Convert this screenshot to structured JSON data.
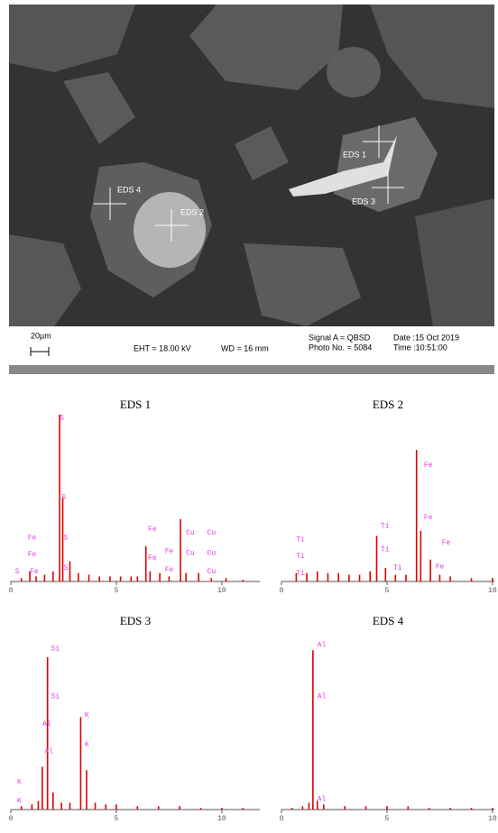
{
  "image": {
    "markers": [
      "EDS 1",
      "EDS 2",
      "EDS 3",
      "EDS 4"
    ],
    "scale_bar": "20µm",
    "eht": "EHT = 18.00 kV",
    "wd": "WD = 16 mm",
    "signal": "Signal A = QBSD",
    "photo": "Photo No. = 5084",
    "date": "Date :15 Oct 2019",
    "time": "Time :10:51:00"
  },
  "chart_data": [
    {
      "type": "bar",
      "title": "EDS 1",
      "color": "#e00000",
      "xlim": [
        0,
        11.8
      ],
      "xticks": [
        0,
        5,
        10
      ],
      "ylim": [
        0,
        100
      ],
      "x": [
        0.5,
        0.9,
        1.2,
        1.6,
        2.0,
        2.31,
        2.46,
        2.8,
        3.2,
        3.7,
        4.2,
        4.7,
        5.2,
        5.7,
        6.0,
        6.4,
        6.6,
        7.06,
        7.5,
        8.04,
        8.3,
        8.9,
        9.5,
        10.2,
        11.0
      ],
      "values": [
        2,
        6,
        3,
        4,
        6,
        99,
        50,
        12,
        5,
        4,
        3,
        3,
        3,
        3,
        3,
        21,
        6,
        5,
        3,
        37,
        5,
        5,
        2,
        2,
        1
      ],
      "annotation_color": "#e040e0",
      "annotations": [
        {
          "text": "S",
          "x": 2.31,
          "y": 97
        },
        {
          "text": "S",
          "x": 2.4,
          "y": 50
        },
        {
          "text": "S",
          "x": 2.5,
          "y": 26
        },
        {
          "text": "S",
          "x": 2.5,
          "y": 8
        },
        {
          "text": "Fe",
          "x": 0.8,
          "y": 26
        },
        {
          "text": "Fe",
          "x": 0.8,
          "y": 16
        },
        {
          "text": "S",
          "x": 0.2,
          "y": 6
        },
        {
          "text": "Fe",
          "x": 0.9,
          "y": 6
        },
        {
          "text": "Fe",
          "x": 6.5,
          "y": 31
        },
        {
          "text": "Fe",
          "x": 6.5,
          "y": 14
        },
        {
          "text": "Fe",
          "x": 7.3,
          "y": 18
        },
        {
          "text": "Fe",
          "x": 7.3,
          "y": 7
        },
        {
          "text": "Cu",
          "x": 8.3,
          "y": 29
        },
        {
          "text": "Cu",
          "x": 8.3,
          "y": 17
        },
        {
          "text": "Cu",
          "x": 9.3,
          "y": 29
        },
        {
          "text": "Cu",
          "x": 9.3,
          "y": 17
        },
        {
          "text": "Cu",
          "x": 9.3,
          "y": 6
        }
      ]
    },
    {
      "type": "bar",
      "title": "EDS 2",
      "color": "#e00000",
      "xlim": [
        0,
        11.8
      ],
      "xticks": [
        0,
        5,
        10
      ],
      "ylim": [
        0,
        100
      ],
      "x": [
        0.7,
        1.2,
        1.7,
        2.2,
        2.7,
        3.2,
        3.7,
        4.2,
        4.51,
        4.93,
        5.4,
        5.9,
        6.4,
        6.6,
        7.06,
        7.5,
        8.0,
        9.0,
        10.0,
        11.0
      ],
      "values": [
        5,
        5,
        6,
        5,
        5,
        4,
        4,
        6,
        27,
        8,
        4,
        4,
        78,
        30,
        13,
        4,
        3,
        2,
        2,
        1
      ],
      "annotation_color": "#e040e0",
      "annotations": [
        {
          "text": "Fe",
          "x": 6.75,
          "y": 69
        },
        {
          "text": "Fe",
          "x": 6.75,
          "y": 38
        },
        {
          "text": "Fe",
          "x": 7.6,
          "y": 23
        },
        {
          "text": "Fe",
          "x": 7.3,
          "y": 9
        },
        {
          "text": "Ti",
          "x": 4.7,
          "y": 33
        },
        {
          "text": "Ti",
          "x": 4.7,
          "y": 19
        },
        {
          "text": "Ti",
          "x": 5.3,
          "y": 8
        },
        {
          "text": "Ti",
          "x": 0.7,
          "y": 25
        },
        {
          "text": "Ti",
          "x": 0.7,
          "y": 15
        },
        {
          "text": "Ti",
          "x": 0.7,
          "y": 5
        }
      ]
    },
    {
      "type": "bar",
      "title": "EDS 3",
      "color": "#e00000",
      "xlim": [
        0,
        11.8
      ],
      "xticks": [
        0,
        5,
        10
      ],
      "ylim": [
        0,
        100
      ],
      "x": [
        0.5,
        1.0,
        1.3,
        1.49,
        1.74,
        2.0,
        2.4,
        2.8,
        3.31,
        3.59,
        4.0,
        4.5,
        5.0,
        6.0,
        7.0,
        8.0,
        9.0,
        10.0,
        11.0
      ],
      "values": [
        2,
        3,
        5,
        25,
        89,
        10,
        4,
        4,
        54,
        23,
        4,
        3,
        3,
        2,
        2,
        2,
        1,
        1,
        1
      ],
      "annotation_color": "#e040e0",
      "annotations": [
        {
          "text": "Si",
          "x": 1.9,
          "y": 94
        },
        {
          "text": "Si",
          "x": 1.9,
          "y": 66
        },
        {
          "text": "Al",
          "x": 1.5,
          "y": 50
        },
        {
          "text": "Al",
          "x": 1.6,
          "y": 34
        },
        {
          "text": "K",
          "x": 3.5,
          "y": 55
        },
        {
          "text": "K",
          "x": 3.5,
          "y": 38
        },
        {
          "text": "K",
          "x": 0.3,
          "y": 16
        },
        {
          "text": "K",
          "x": 0.3,
          "y": 5
        }
      ]
    },
    {
      "type": "bar",
      "title": "EDS 4",
      "color": "#e00000",
      "xlim": [
        0,
        11.8
      ],
      "xticks": [
        0,
        5,
        10
      ],
      "ylim": [
        0,
        100
      ],
      "x": [
        0.5,
        1.0,
        1.3,
        1.49,
        1.7,
        2.0,
        3.0,
        4.0,
        5.0,
        6.0,
        7.0,
        8.0,
        9.0,
        10.0,
        11.0
      ],
      "values": [
        1,
        2,
        4,
        93,
        5,
        3,
        2,
        2,
        2,
        2,
        1,
        1,
        1,
        1,
        1
      ],
      "annotation_color": "#e040e0",
      "annotations": [
        {
          "text": "Al",
          "x": 1.7,
          "y": 96
        },
        {
          "text": "Al",
          "x": 1.7,
          "y": 66
        },
        {
          "text": "Al",
          "x": 1.7,
          "y": 6
        }
      ]
    }
  ]
}
